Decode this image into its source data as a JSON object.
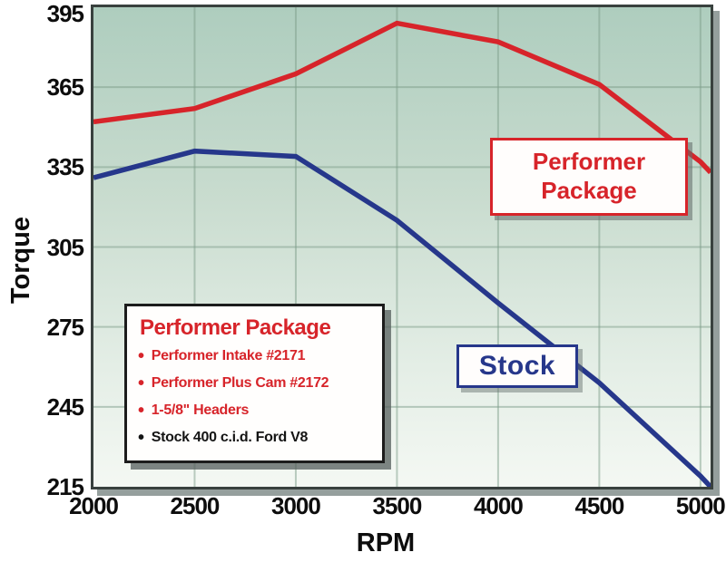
{
  "colors": {
    "performer_red": "#d7242a",
    "stock_blue": "#26378b",
    "grid_green": "#7d9e8a",
    "plot_border": "#39413e",
    "bg_top": "#aecdbe",
    "bg_bottom": "#f4f8f3",
    "tick_text": "#0d0d0d"
  },
  "axes": {
    "x": {
      "label": "RPM",
      "min": 2000,
      "max": 5050,
      "ticks": [
        2000,
        2500,
        3000,
        3500,
        4000,
        4500,
        5000
      ],
      "gridline_ticks": [
        2500,
        3000,
        3500,
        4000,
        4500,
        5000
      ]
    },
    "y": {
      "label": "Torque",
      "min": 215,
      "max": 395,
      "ticks": [
        395,
        365,
        335,
        305,
        275,
        245,
        215
      ],
      "gridline_values": [
        365,
        335,
        305,
        275,
        245
      ]
    }
  },
  "annotations": {
    "performer_label": "Performer Package",
    "stock_label": "Stock"
  },
  "legend": {
    "title": "Performer Package",
    "items": [
      {
        "text": "Performer Intake #2171",
        "color": "#d7242a",
        "bullet": "#d7242a"
      },
      {
        "text": "Performer Plus Cam #2172",
        "color": "#d7242a",
        "bullet": "#d7242a"
      },
      {
        "text": "1-5/8\" Headers",
        "color": "#d7242a",
        "bullet": "#d7242a"
      },
      {
        "text": "Stock 400 c.i.d. Ford V8",
        "color": "#141414",
        "bullet": "#141414"
      }
    ]
  },
  "chart_data": {
    "type": "line",
    "title": "",
    "xlabel": "RPM",
    "ylabel": "Torque",
    "xlim": [
      2000,
      5050
    ],
    "ylim": [
      215,
      395
    ],
    "grid": true,
    "legend_position": "inline-callouts-and-box",
    "x": [
      2000,
      2500,
      3000,
      3500,
      4000,
      4500,
      5000,
      5050
    ],
    "series": [
      {
        "name": "Performer Package",
        "color": "#d7242a",
        "values": [
          352,
          357,
          370,
          389,
          382,
          366,
          337,
          333
        ]
      },
      {
        "name": "Stock",
        "color": "#26378b",
        "values": [
          331,
          341,
          339,
          315,
          284,
          254,
          219,
          215
        ]
      }
    ]
  }
}
